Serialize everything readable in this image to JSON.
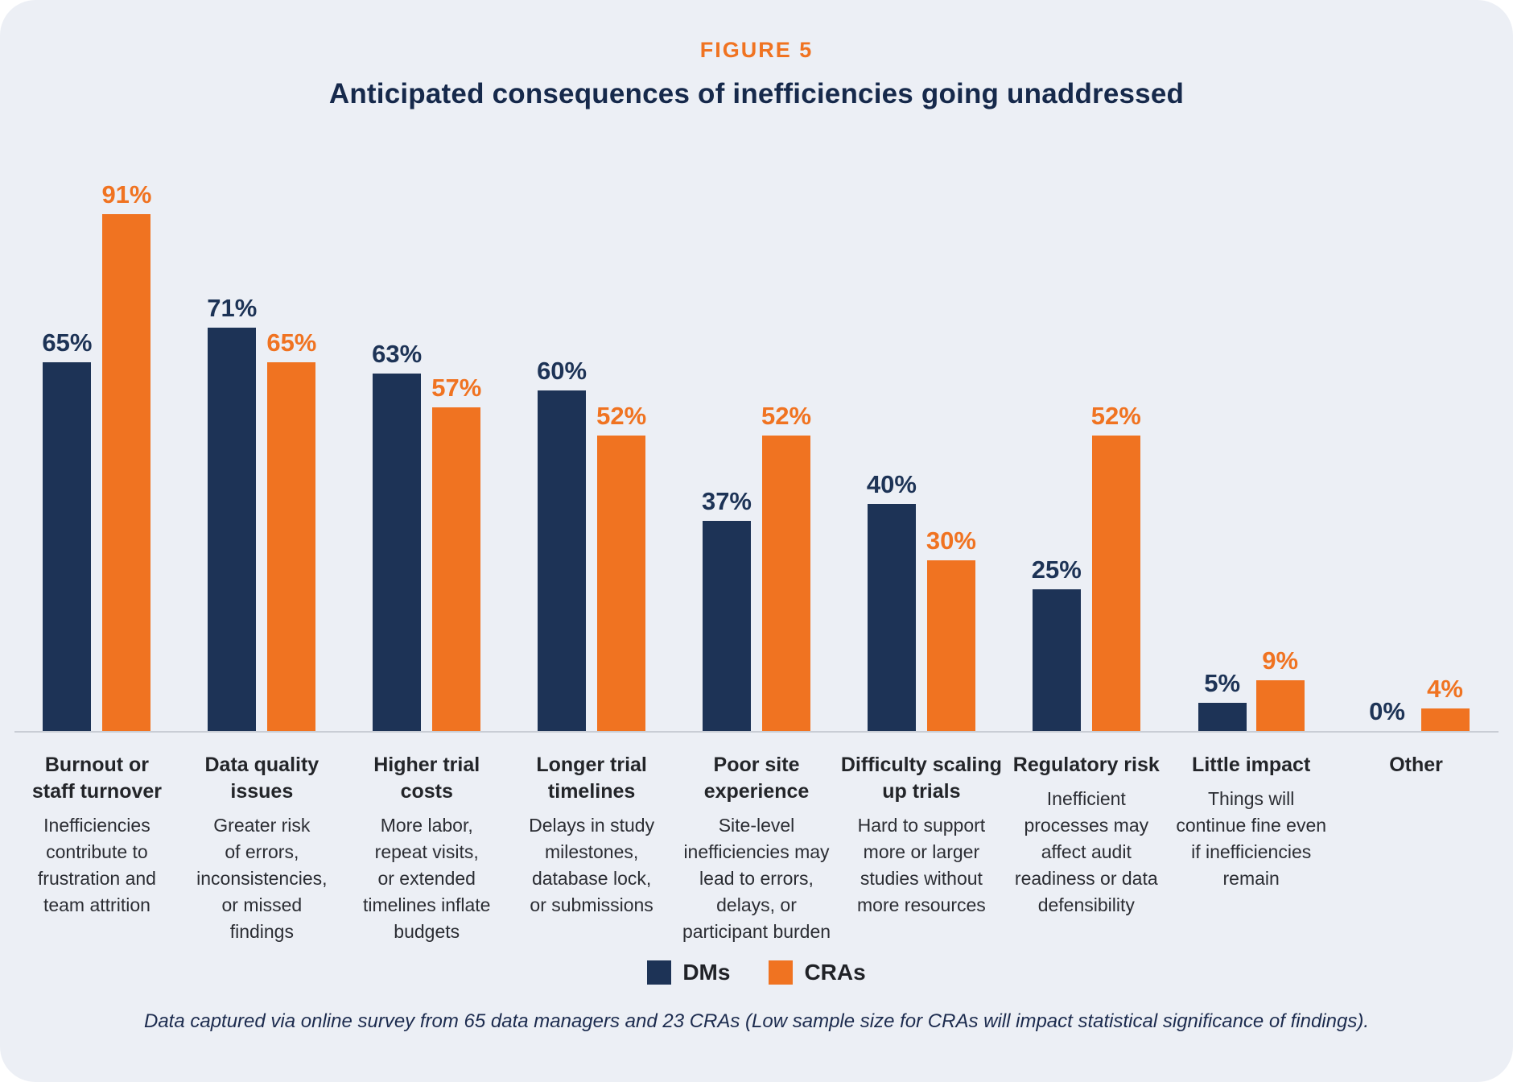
{
  "header": {
    "figure_label": "FIGURE 5",
    "title": "Anticipated consequences of inefficiencies going unaddressed"
  },
  "colors": {
    "navy": "#1D3356",
    "orange": "#F07321",
    "card_background": "#ECEFF5",
    "axis_line": "#C9CDD5"
  },
  "chart_data": {
    "type": "bar",
    "unit": "%",
    "ylim": [
      0,
      100
    ],
    "grid": false,
    "legend_position": "bottom",
    "title": "Anticipated consequences of inefficiencies going unaddressed",
    "categories": [
      {
        "name": "Burnout or\nstaff turnover",
        "desc": "Inefficiencies\ncontribute to\nfrustration and\nteam attrition"
      },
      {
        "name": "Data quality\nissues",
        "desc": "Greater risk\nof errors,\ninconsistencies,\nor missed\nfindings"
      },
      {
        "name": "Higher trial\ncosts",
        "desc": "More labor,\nrepeat visits,\nor extended\ntimelines inflate\nbudgets"
      },
      {
        "name": "Longer trial\ntimelines",
        "desc": "Delays in study\nmilestones,\ndatabase lock,\nor submissions"
      },
      {
        "name": "Poor site\nexperience",
        "desc": "Site-level\ninefficiencies may\nlead to errors,\ndelays, or\nparticipant burden"
      },
      {
        "name": "Difficulty scaling\nup trials",
        "desc": "Hard to support\nmore or larger\nstudies without\nmore resources"
      },
      {
        "name": "Regulatory risk",
        "desc": "Inefficient\nprocesses may\naffect audit\nreadiness or data\ndefensibility"
      },
      {
        "name": "Little impact",
        "desc": "Things will\ncontinue fine even\nif inefficiencies\nremain"
      },
      {
        "name": "Other",
        "desc": ""
      }
    ],
    "series": [
      {
        "name": "DMs",
        "color": "#1D3356",
        "values": [
          65,
          71,
          63,
          60,
          37,
          40,
          25,
          5,
          0
        ]
      },
      {
        "name": "CRAs",
        "color": "#F07321",
        "values": [
          91,
          65,
          57,
          52,
          52,
          30,
          52,
          9,
          4
        ]
      }
    ]
  },
  "legend": {
    "items": [
      {
        "label": "DMs",
        "color": "#1D3356"
      },
      {
        "label": "CRAs",
        "color": "#F07321"
      }
    ]
  },
  "footnote": "Data captured via online survey from 65 data managers and 23 CRAs (Low sample size for CRAs will impact statistical significance of findings)."
}
